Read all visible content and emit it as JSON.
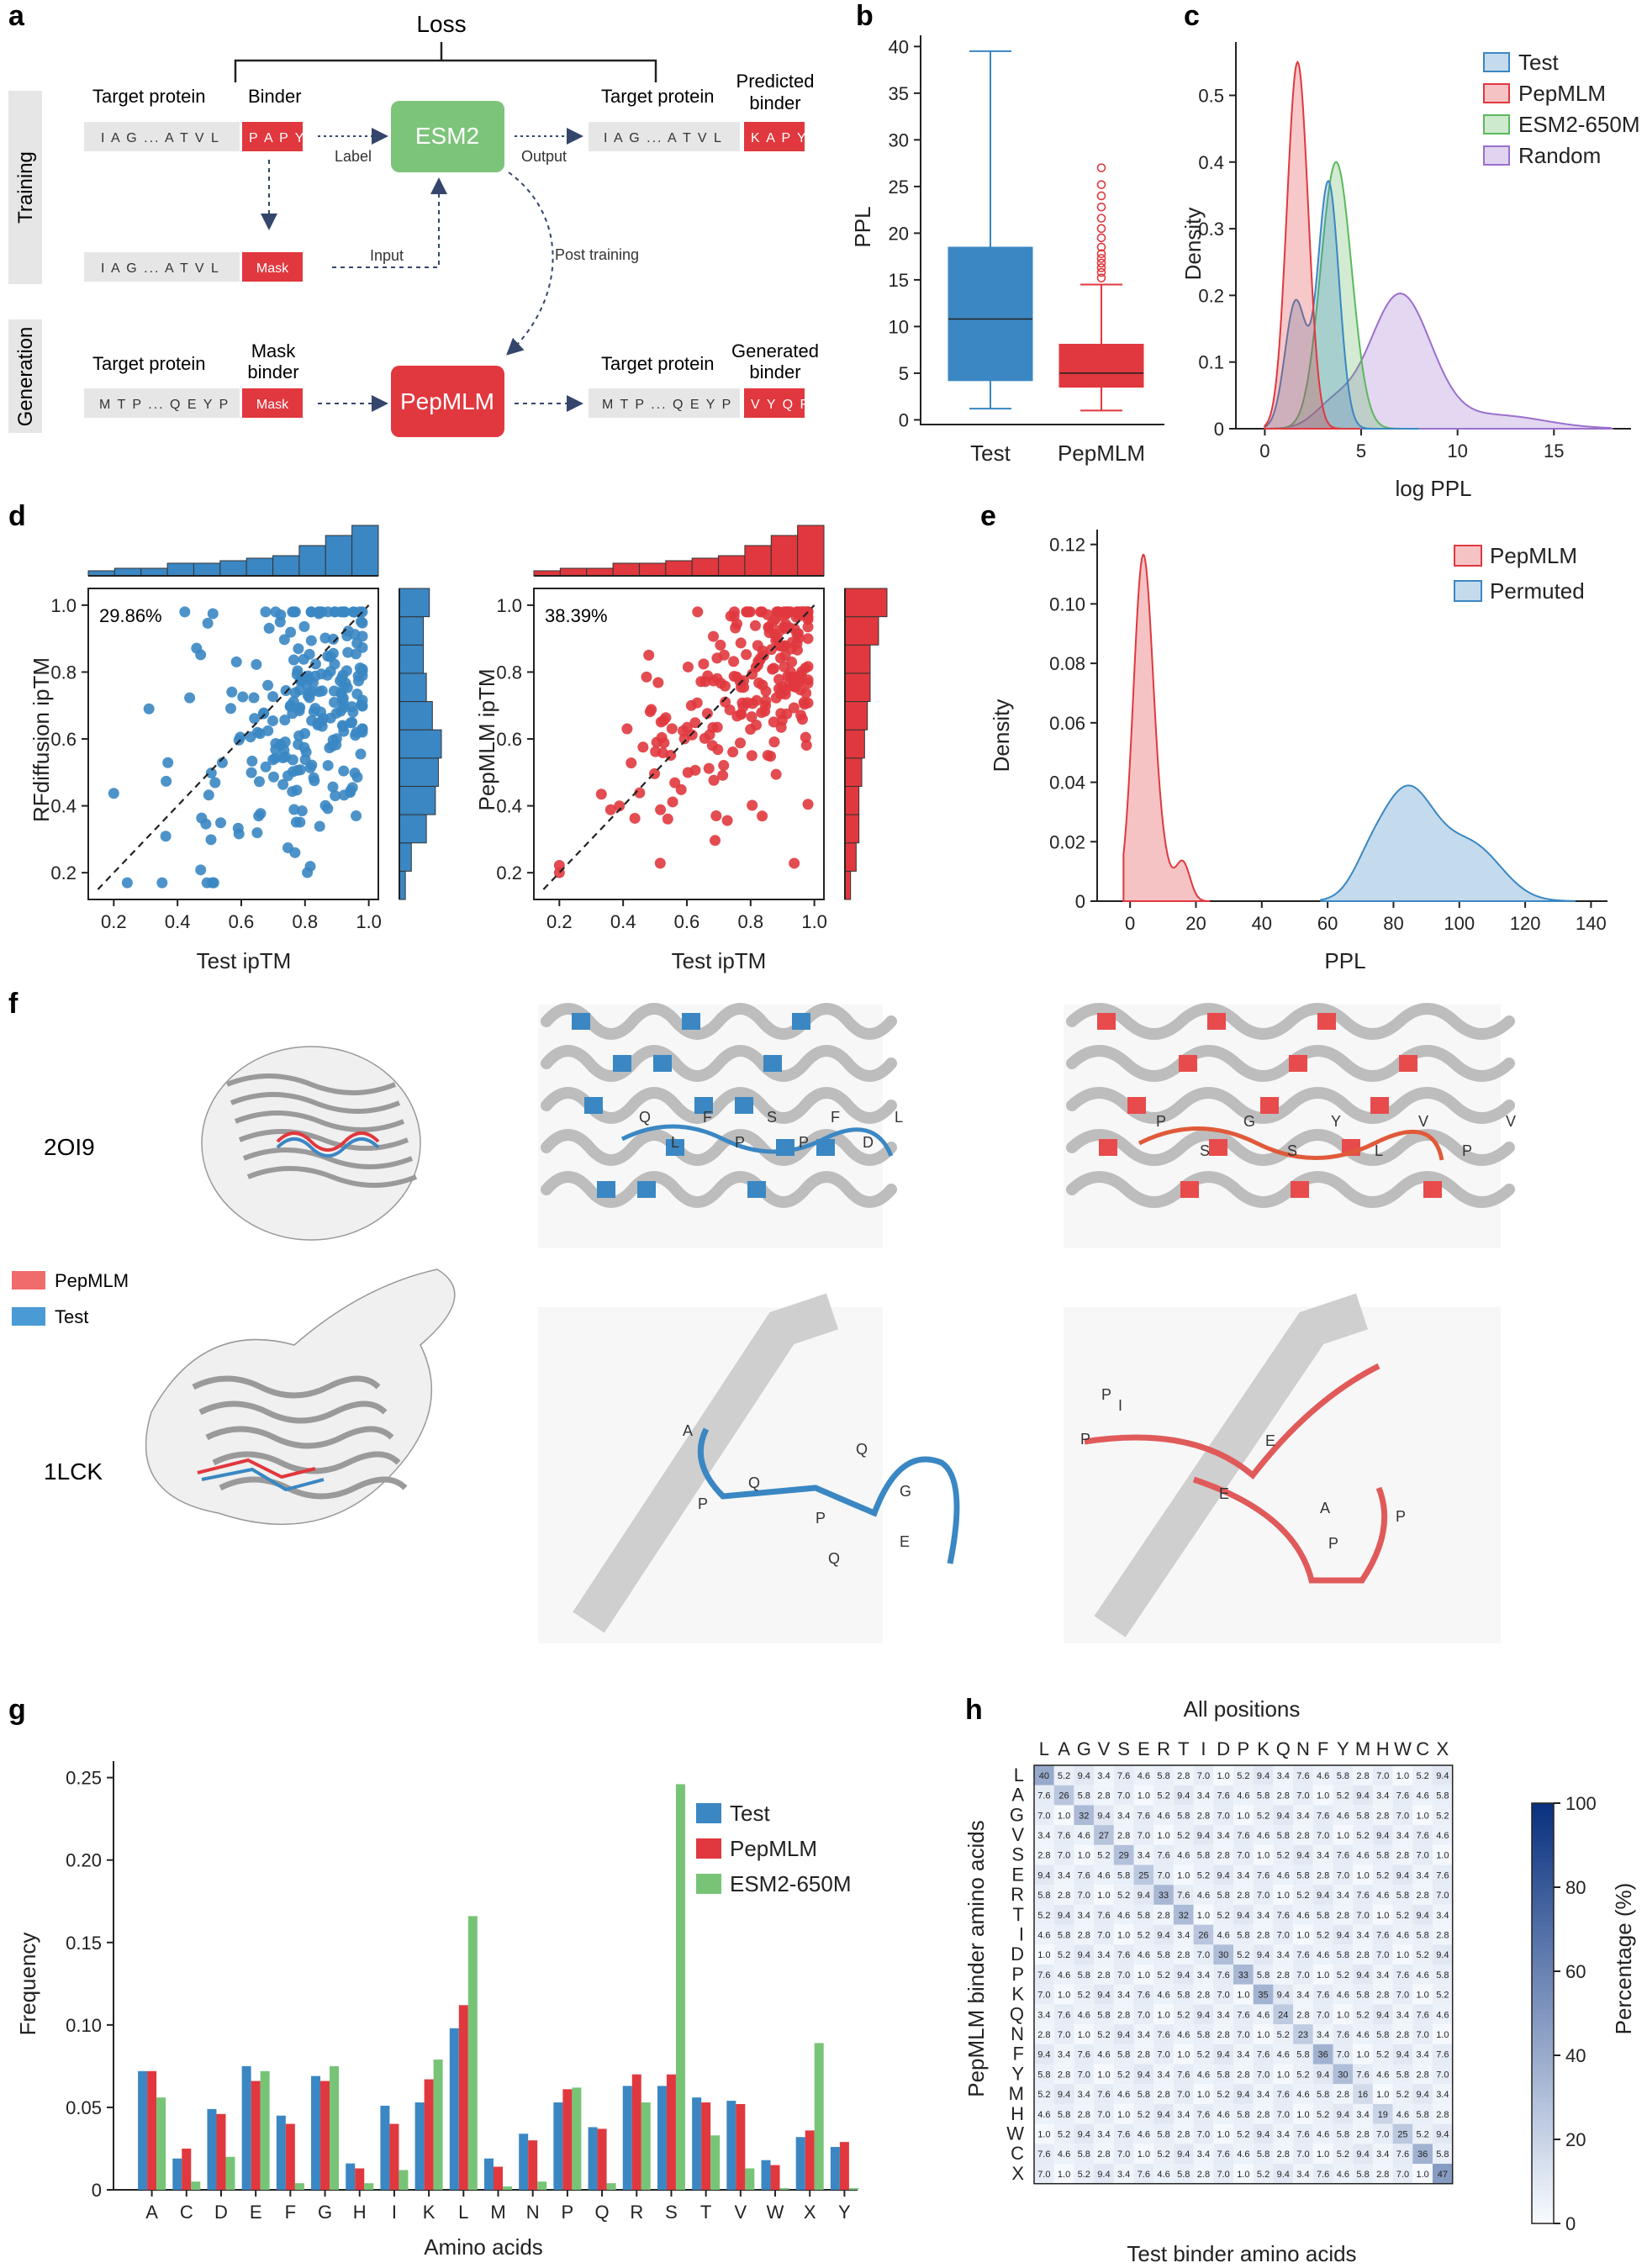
{
  "panel_labels": {
    "a": "a",
    "b": "b",
    "c": "c",
    "d": "d",
    "e": "e",
    "f": "f",
    "g": "g",
    "h": "h"
  },
  "schematic": {
    "loss": "Loss",
    "training": "Training",
    "generation": "Generation",
    "target_protein": "Target protein",
    "binder": "Binder",
    "predicted_binder_1": "Predicted",
    "predicted_binder_2": "binder",
    "mask_binder_1": "Mask",
    "mask_binder_2": "binder",
    "generated_binder_1": "Generated",
    "generated_binder_2": "binder",
    "seq_train": "I A G ... A T V L",
    "seq_gen": "M T P ... Q E Y P",
    "binder_seq": "P A P Y",
    "pred_seq": "K A P Y",
    "gen_seq": "V Y Q F",
    "mask": "Mask",
    "esm2": "ESM2",
    "pepmlm": "PepMLM",
    "label": "Label",
    "output": "Output",
    "input": "Input",
    "post_training": "Post training"
  },
  "colors": {
    "test": "#3a87c3",
    "pepmlm": "#e0383e",
    "esm": "#5cb85c",
    "random": "#9b6fce",
    "esm_box": "#7dc47b",
    "grey": "#e8e8e8"
  },
  "chart_data": [
    {
      "panel": "b",
      "type": "box",
      "categories": [
        "Test",
        "PepMLM"
      ],
      "ylabel": "PPL",
      "yticks": [
        0,
        5,
        10,
        15,
        20,
        25,
        30,
        35,
        40
      ],
      "ylim": [
        0,
        40
      ],
      "boxes": [
        {
          "name": "Test",
          "min": 1.2,
          "q1": 4.2,
          "median": 10.8,
          "q3": 18.5,
          "max": 39.5,
          "outliers": []
        },
        {
          "name": "PepMLM",
          "min": 1.0,
          "q1": 3.5,
          "median": 5.0,
          "q3": 8.1,
          "max": 14.5,
          "outliers": [
            15.2,
            15.8,
            16.3,
            16.8,
            17.3,
            17.8,
            18.5,
            19.5,
            20.5,
            21.6,
            22.8,
            24.0,
            25.2,
            27.0
          ]
        }
      ]
    },
    {
      "panel": "c",
      "type": "area",
      "xlabel": "log PPL",
      "ylabel": "Density",
      "xticks": [
        0,
        5,
        10,
        15
      ],
      "yticks": [
        0,
        0.1,
        0.2,
        0.3,
        0.4,
        0.5
      ],
      "xlim": [
        -1.5,
        19
      ],
      "ylim": [
        0,
        0.58
      ],
      "legend": "top-right",
      "series": [
        {
          "name": "Test",
          "peaks": [
            [
              1.6,
              0.19
            ],
            [
              3.3,
              0.37
            ]
          ],
          "range": [
            0,
            8
          ]
        },
        {
          "name": "PepMLM",
          "peaks": [
            [
              1.7,
              0.55
            ]
          ],
          "range": [
            0,
            5
          ]
        },
        {
          "name": "ESM2-650M",
          "peaks": [
            [
              3.7,
              0.4
            ]
          ],
          "range": [
            0,
            8
          ]
        },
        {
          "name": "Random",
          "peaks": [
            [
              7.0,
              0.2
            ]
          ],
          "range": [
            0,
            18
          ]
        }
      ]
    },
    {
      "panel": "d-left",
      "type": "scatter",
      "xlabel": "Test ipTM",
      "ylabel": "RFdiffusion ipTM",
      "annotation": "29.86%",
      "xticks": [
        0.2,
        0.4,
        0.6,
        0.8,
        1.0
      ],
      "yticks": [
        0.2,
        0.4,
        0.6,
        0.8,
        1.0
      ],
      "xlim": [
        0.12,
        1.03
      ],
      "ylim": [
        0.12,
        1.05
      ],
      "x_hist": [
        0.02,
        0.03,
        0.03,
        0.05,
        0.05,
        0.06,
        0.07,
        0.08,
        0.12,
        0.16,
        0.2
      ],
      "y_hist": [
        0.02,
        0.04,
        0.09,
        0.12,
        0.13,
        0.14,
        0.11,
        0.09,
        0.08,
        0.08,
        0.1
      ]
    },
    {
      "panel": "d-right",
      "type": "scatter",
      "xlabel": "Test ipTM",
      "ylabel": "PepMLM ipTM",
      "annotation": "38.39%",
      "xticks": [
        0.2,
        0.4,
        0.6,
        0.8,
        1.0
      ],
      "yticks": [
        0.2,
        0.4,
        0.6,
        0.8,
        1.0
      ],
      "xlim": [
        0.12,
        1.03
      ],
      "ylim": [
        0.12,
        1.05
      ],
      "x_hist": [
        0.02,
        0.03,
        0.03,
        0.05,
        0.05,
        0.06,
        0.07,
        0.08,
        0.12,
        0.16,
        0.2
      ],
      "y_hist": [
        0.02,
        0.04,
        0.05,
        0.05,
        0.06,
        0.07,
        0.08,
        0.09,
        0.09,
        0.12,
        0.15
      ]
    },
    {
      "panel": "e",
      "type": "area",
      "xlabel": "PPL",
      "ylabel": "Density",
      "xticks": [
        0,
        20,
        40,
        60,
        80,
        100,
        120,
        140
      ],
      "yticks": [
        0,
        0.02,
        0.04,
        0.06,
        0.08,
        0.1,
        0.12
      ],
      "xlim": [
        -10,
        145
      ],
      "ylim": [
        0,
        0.125
      ],
      "legend": "top-right",
      "series": [
        {
          "name": "PepMLM",
          "peaks": [
            [
              4,
              0.116
            ],
            [
              16,
              0.012
            ]
          ]
        },
        {
          "name": "Permuted",
          "peaks": [
            [
              86,
              0.038
            ]
          ]
        }
      ]
    },
    {
      "panel": "g",
      "type": "bar",
      "xlabel": "Amino acids",
      "ylabel": "Frequency",
      "yticks": [
        0,
        0.05,
        0.1,
        0.15,
        0.2,
        0.25
      ],
      "ylim": [
        0,
        0.26
      ],
      "legend": "top-right",
      "categories": [
        "A",
        "C",
        "D",
        "E",
        "F",
        "G",
        "H",
        "I",
        "K",
        "L",
        "M",
        "N",
        "P",
        "Q",
        "R",
        "S",
        "T",
        "V",
        "W",
        "X",
        "Y"
      ],
      "series": [
        {
          "name": "Test",
          "values": [
            0.072,
            0.019,
            0.049,
            0.075,
            0.045,
            0.069,
            0.016,
            0.051,
            0.053,
            0.098,
            0.019,
            0.034,
            0.053,
            0.038,
            0.063,
            0.063,
            0.056,
            0.054,
            0.018,
            0.032,
            0.026
          ]
        },
        {
          "name": "PepMLM",
          "values": [
            0.072,
            0.025,
            0.046,
            0.066,
            0.04,
            0.066,
            0.013,
            0.04,
            0.067,
            0.112,
            0.014,
            0.03,
            0.061,
            0.037,
            0.07,
            0.07,
            0.053,
            0.052,
            0.015,
            0.036,
            0.029
          ]
        },
        {
          "name": "ESM2-650M",
          "values": [
            0.056,
            0.005,
            0.02,
            0.072,
            0.004,
            0.075,
            0.004,
            0.012,
            0.079,
            0.166,
            0.002,
            0.005,
            0.062,
            0.004,
            0.053,
            0.246,
            0.033,
            0.013,
            0.001,
            0.089,
            0.001
          ]
        }
      ]
    },
    {
      "panel": "h",
      "type": "heatmap",
      "title": "All positions",
      "xlabel": "Test binder amino acids",
      "ylabel": "PepMLM binder amino acids",
      "colorbar_label": "Percentage (%)",
      "colorbar_ticks": [
        0,
        20,
        40,
        60,
        80,
        100
      ],
      "x_labels": [
        "L",
        "A",
        "G",
        "V",
        "S",
        "E",
        "R",
        "T",
        "I",
        "D",
        "P",
        "K",
        "Q",
        "N",
        "F",
        "Y",
        "M",
        "H",
        "W",
        "C",
        "X"
      ],
      "y_labels": [
        "L",
        "A",
        "G",
        "V",
        "S",
        "E",
        "R",
        "T",
        "I",
        "D",
        "P",
        "K",
        "Q",
        "N",
        "F",
        "Y",
        "M",
        "H",
        "W",
        "C",
        "X"
      ],
      "diagonal": [
        40,
        26,
        32,
        27,
        29,
        25,
        33,
        32,
        26,
        30,
        33,
        35,
        24,
        23,
        36,
        30,
        16,
        19,
        25,
        36,
        47
      ]
    }
  ],
  "plot_labels": {
    "b_ylabel": "PPL",
    "b_cat1": "Test",
    "b_cat2": "PepMLM",
    "c_xlabel": "log PPL",
    "c_ylabel": "Density",
    "c_leg": [
      "Test",
      "PepMLM",
      "ESM2-650M",
      "Random"
    ],
    "d_left_ylabel": "RFdiffusion ipTM",
    "d_right_ylabel": "PepMLM ipTM",
    "d_xlabel": "Test ipTM",
    "d_left_pct": "29.86%",
    "d_right_pct": "38.39%",
    "e_xlabel": "PPL",
    "e_ylabel": "Density",
    "e_leg": [
      "PepMLM",
      "Permuted"
    ],
    "f_row1": "2OI9",
    "f_row2": "1LCK",
    "f_leg": [
      "PepMLM",
      "Test"
    ],
    "g_xlabel": "Amino acids",
    "g_ylabel": "Frequency",
    "g_leg": [
      "Test",
      "PepMLM",
      "ESM2-650M"
    ],
    "h_title": "All positions",
    "h_xlabel": "Test binder amino acids",
    "h_ylabel": "PepMLM binder amino acids",
    "h_cbar": "Percentage (%)"
  },
  "structure_letters": {
    "r1c2": [
      "Q",
      "L",
      "F",
      "P",
      "S",
      "P",
      "F",
      "D",
      "L"
    ],
    "r1c3": [
      "P",
      "S",
      "G",
      "S",
      "Y",
      "L",
      "V",
      "P",
      "V"
    ],
    "r2c2": [
      "A",
      "Q",
      "Q",
      "G",
      "P",
      "P",
      "E",
      "Q"
    ],
    "r2c3": [
      "P",
      "I",
      "P",
      "E",
      "E",
      "A",
      "P",
      "P"
    ]
  }
}
